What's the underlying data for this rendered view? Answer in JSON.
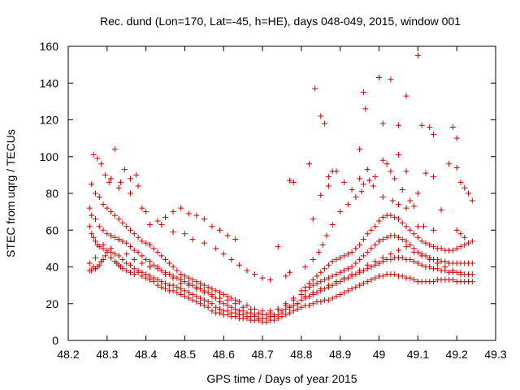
{
  "chart_data": {
    "type": "scatter",
    "title": "Rec. dund (Lon=170, Lat=-45, h=HE), days 048-049, 2015, window 001",
    "xlabel": "GPS time / Days of year 2015",
    "ylabel": "STEC from uqrg / TECUs",
    "xlim": [
      48.2,
      49.3
    ],
    "ylim": [
      0,
      160
    ],
    "xticks": [
      48.2,
      48.3,
      48.4,
      48.5,
      48.6,
      48.7,
      48.8,
      48.9,
      49,
      49.1,
      49.2,
      49.3
    ],
    "xtick_labels": [
      "48.2",
      "48.3",
      "48.4",
      "48.5",
      "48.6",
      "48.7",
      "48.8",
      "48.9",
      "49",
      "49.1",
      "49.2",
      "49.3"
    ],
    "yticks": [
      0,
      20,
      40,
      60,
      80,
      100,
      120,
      140,
      160
    ],
    "ytick_labels": [
      "0",
      "20",
      "40",
      "60",
      "80",
      "100",
      "120",
      "140",
      "160"
    ],
    "grid": false,
    "marker": "plus",
    "marker_color": "#cc0000",
    "series": [
      {
        "x": [
          48.255,
          48.255,
          48.26,
          48.265,
          48.27,
          48.275,
          48.28,
          48.285,
          48.29,
          48.295,
          48.3,
          48.31,
          48.32,
          48.325,
          48.33,
          48.335,
          48.34,
          48.35,
          48.36,
          48.37,
          48.38,
          48.39,
          48.4,
          48.41,
          48.42,
          48.43,
          48.44,
          48.45,
          48.46,
          48.47,
          48.48,
          48.49,
          48.5,
          48.51,
          48.52,
          48.53,
          48.54,
          48.55,
          48.56,
          48.57,
          48.58,
          48.59,
          48.6,
          48.61,
          48.62,
          48.63,
          48.64,
          48.65,
          48.66,
          48.67,
          48.68,
          48.69,
          48.7,
          48.71,
          48.72,
          48.73,
          48.74,
          48.75,
          48.76,
          48.77,
          48.78,
          48.79,
          48.8,
          48.81,
          48.82,
          48.83,
          48.84,
          48.85,
          48.86,
          48.87,
          48.88,
          48.89,
          48.9,
          48.91,
          48.92,
          48.93,
          48.94,
          48.95,
          48.96,
          48.97,
          48.98,
          48.99,
          49.0,
          49.01,
          49.02,
          49.03,
          49.04,
          49.05,
          49.06,
          49.07,
          49.08,
          49.09,
          49.1,
          49.11,
          49.12,
          49.13,
          49.14,
          49.15,
          49.16,
          49.17,
          49.18,
          49.19,
          49.2,
          49.21,
          49.22,
          49.23,
          49.24
        ],
        "y": [
          38,
          42,
          38,
          40,
          39,
          40,
          41,
          43,
          44,
          46,
          48,
          45,
          43,
          42,
          41,
          40,
          39,
          38,
          37,
          36,
          37,
          35,
          34,
          33,
          32,
          30,
          29,
          28,
          27,
          27,
          26,
          25,
          24,
          23,
          22,
          21,
          20,
          19,
          18,
          16,
          15,
          15,
          14,
          14,
          13,
          13,
          12,
          12,
          12,
          11,
          11,
          11,
          10,
          10,
          11,
          11,
          12,
          13,
          14,
          15,
          16,
          17,
          18,
          19,
          19,
          20,
          21,
          21,
          22,
          22,
          23,
          24,
          25,
          26,
          27,
          28,
          29,
          30,
          31,
          32,
          33,
          34,
          35,
          35,
          36,
          36,
          36,
          35,
          35,
          34,
          34,
          33,
          32,
          32,
          32,
          32,
          32,
          33,
          33,
          33,
          33,
          33,
          32,
          32,
          32,
          32,
          32
        ]
      },
      {
        "x": [
          48.255,
          48.26,
          48.265,
          48.27,
          48.275,
          48.28,
          48.29,
          48.3,
          48.31,
          48.32,
          48.33,
          48.34,
          48.35,
          48.36,
          48.37,
          48.38,
          48.39,
          48.4,
          48.41,
          48.42,
          48.43,
          48.44,
          48.45,
          48.46,
          48.47,
          48.48,
          48.49,
          48.5,
          48.51,
          48.52,
          48.53,
          48.54,
          48.55,
          48.56,
          48.57,
          48.58,
          48.59,
          48.6,
          48.61,
          48.62,
          48.63,
          48.64,
          48.65,
          48.66,
          48.67,
          48.68,
          48.69,
          48.7,
          48.71,
          48.72,
          48.73,
          48.74,
          48.75,
          48.76,
          48.77,
          48.78,
          48.79,
          48.8,
          48.81,
          48.82,
          48.83,
          48.84,
          48.85,
          48.86,
          48.87,
          48.88,
          48.89,
          48.9,
          48.91,
          48.92,
          48.93,
          48.94,
          48.95,
          48.96,
          48.97,
          48.98,
          48.99,
          49.0,
          49.01,
          49.02,
          49.03,
          49.04,
          49.05,
          49.06,
          49.07,
          49.08,
          49.09,
          49.1,
          49.11,
          49.12,
          49.13,
          49.14,
          49.15,
          49.16,
          49.17,
          49.18,
          49.19,
          49.2,
          49.21,
          49.22,
          49.23,
          49.24
        ],
        "y": [
          62,
          58,
          56,
          54,
          52,
          51,
          50,
          49,
          48,
          47,
          46,
          44,
          42,
          41,
          39,
          38,
          37,
          36,
          35,
          34,
          33,
          32,
          31,
          30,
          30,
          29,
          28,
          27,
          26,
          25,
          24,
          23,
          22,
          21,
          20,
          18,
          17,
          16,
          16,
          15,
          15,
          14,
          14,
          13,
          13,
          13,
          12,
          12,
          12,
          13,
          13,
          14,
          15,
          17,
          18,
          19,
          20,
          22,
          23,
          24,
          25,
          26,
          27,
          28,
          29,
          30,
          31,
          32,
          33,
          34,
          35,
          36,
          37,
          38,
          39,
          40,
          41,
          42,
          43,
          44,
          44,
          45,
          45,
          45,
          44,
          44,
          43,
          42,
          41,
          40,
          40,
          39,
          39,
          38,
          38,
          37,
          37,
          37,
          36,
          36,
          36,
          36
        ]
      },
      {
        "x": [
          48.255,
          48.26,
          48.27,
          48.28,
          48.29,
          48.3,
          48.31,
          48.32,
          48.33,
          48.34,
          48.35,
          48.36,
          48.37,
          48.38,
          48.39,
          48.4,
          48.41,
          48.42,
          48.43,
          48.44,
          48.45,
          48.46,
          48.47,
          48.48,
          48.49,
          48.5,
          48.51,
          48.52,
          48.53,
          48.54,
          48.55,
          48.56,
          48.57,
          48.58,
          48.59,
          48.6,
          48.61,
          48.62,
          48.63,
          48.64,
          48.65,
          48.66,
          48.67,
          48.68,
          48.7,
          48.72,
          48.74,
          48.76,
          48.78,
          48.8,
          48.81,
          48.82,
          48.83,
          48.84,
          48.85,
          48.86,
          48.87,
          48.88,
          48.89,
          48.9,
          48.91,
          48.92,
          48.93,
          48.94,
          48.95,
          48.96,
          48.97,
          48.98,
          48.99,
          49.0,
          49.01,
          49.02,
          49.03,
          49.04,
          49.05,
          49.06,
          49.07,
          49.08,
          49.09,
          49.1,
          49.11,
          49.12,
          49.13,
          49.14,
          49.15,
          49.16,
          49.17,
          49.18,
          49.19,
          49.2,
          49.21,
          49.22,
          49.23,
          49.24
        ],
        "y": [
          72,
          68,
          66,
          62,
          60,
          58,
          57,
          56,
          55,
          54,
          53,
          51,
          49,
          48,
          46,
          44,
          43,
          41,
          40,
          38,
          37,
          36,
          35,
          34,
          33,
          32,
          31,
          30,
          29,
          28,
          27,
          26,
          24,
          23,
          21,
          20,
          19,
          18,
          17,
          16,
          16,
          15,
          15,
          14,
          14,
          15,
          17,
          19,
          22,
          25,
          27,
          29,
          30,
          31,
          32,
          33,
          34,
          35,
          36,
          37,
          38,
          39,
          40,
          42,
          44,
          46,
          48,
          50,
          52,
          54,
          55,
          56,
          57,
          57,
          56,
          55,
          54,
          52,
          50,
          48,
          47,
          46,
          45,
          44,
          44,
          43,
          43,
          42,
          42,
          42,
          42,
          42,
          42,
          42
        ]
      },
      {
        "x": [
          48.26,
          48.27,
          48.28,
          48.29,
          48.3,
          48.31,
          48.32,
          48.33,
          48.34,
          48.35,
          48.36,
          48.37,
          48.38,
          48.39,
          48.4,
          48.41,
          48.42,
          48.43,
          48.44,
          48.45,
          48.46,
          48.47,
          48.48,
          48.49,
          48.5,
          48.51,
          48.52,
          48.53,
          48.54,
          48.55,
          48.56,
          48.57,
          48.58,
          48.59,
          48.6,
          48.61,
          48.62,
          48.63,
          48.64,
          48.66,
          48.68,
          48.7,
          48.72,
          48.74,
          48.76,
          48.78,
          48.8,
          48.81,
          48.82,
          48.83,
          48.84,
          48.85,
          48.86,
          48.87,
          48.88,
          48.89,
          48.9,
          48.91,
          48.92,
          48.93,
          48.94,
          48.95,
          48.96,
          48.97,
          48.98,
          48.99,
          49.0,
          49.01,
          49.02,
          49.03,
          49.04,
          49.05,
          49.06,
          49.07,
          49.08,
          49.09,
          49.1,
          49.11,
          49.12,
          49.13,
          49.14,
          49.15,
          49.16,
          49.17,
          49.18,
          49.19,
          49.2,
          49.21,
          49.22,
          49.23,
          49.24
        ],
        "y": [
          85,
          80,
          78,
          74,
          72,
          70,
          68,
          66,
          64,
          62,
          60,
          58,
          56,
          54,
          53,
          52,
          50,
          48,
          46,
          44,
          42,
          40,
          38,
          36,
          35,
          34,
          33,
          32,
          31,
          30,
          29,
          28,
          27,
          26,
          25,
          24,
          23,
          22,
          21,
          19,
          17,
          16,
          16,
          17,
          20,
          23,
          27,
          29,
          31,
          33,
          35,
          37,
          39,
          41,
          43,
          44,
          45,
          46,
          47,
          48,
          50,
          52,
          55,
          58,
          60,
          62,
          65,
          67,
          68,
          68,
          67,
          66,
          64,
          62,
          60,
          58,
          56,
          54,
          53,
          52,
          51,
          50,
          50,
          49,
          49,
          49,
          50,
          51,
          52,
          53,
          54
        ]
      },
      {
        "x": [
          48.265,
          48.275,
          48.285,
          48.295,
          48.305,
          48.32,
          48.335,
          48.345,
          48.36,
          48.375,
          48.39,
          48.41,
          48.43,
          48.45,
          48.47,
          48.49,
          48.51,
          48.53,
          48.55,
          48.57,
          48.59,
          48.61,
          48.63,
          48.83,
          48.85,
          48.87,
          48.89,
          48.91,
          48.93,
          48.95,
          48.97,
          48.99,
          49.01,
          49.02,
          49.03,
          49.04,
          49.05,
          49.06,
          49.07,
          49.08,
          49.09,
          49.1,
          49.12,
          49.14,
          49.16,
          49.18,
          49.2,
          49.21,
          49.22,
          49.23,
          49.24
        ],
        "y": [
          101,
          99,
          96,
          90,
          86,
          104,
          86,
          93,
          88,
          90,
          72,
          63,
          65,
          67,
          70,
          72,
          69,
          68,
          66,
          62,
          60,
          57,
          55,
          66,
          79,
          84,
          92,
          86,
          82,
          88,
          93,
          89,
          98,
          96,
          92,
          88,
          101,
          82,
          92,
          76,
          73,
          80,
          91,
          89,
          71,
          96,
          94,
          86,
          83,
          80,
          76
        ]
      },
      {
        "x": [
          48.31,
          48.33,
          48.36,
          48.38,
          48.4,
          48.44,
          48.47,
          48.5,
          48.52,
          48.55,
          48.58,
          48.6,
          48.62,
          48.64,
          48.66,
          48.68,
          48.7,
          48.72,
          48.76,
          48.77,
          48.81,
          48.83,
          48.845,
          48.855,
          48.865,
          48.88,
          48.9,
          48.92,
          48.94,
          48.955,
          48.96,
          48.975,
          48.985,
          49.01,
          49.035,
          49.05,
          49.07,
          49.1,
          49.115,
          49.14,
          49.2,
          49.21,
          49.22
        ],
        "y": [
          88,
          83,
          80,
          84,
          70,
          63,
          59,
          58,
          55,
          53,
          50,
          47,
          44,
          41,
          38,
          36,
          34,
          33,
          35,
          37,
          40,
          44,
          48,
          52,
          57,
          63,
          70,
          74,
          78,
          81,
          85,
          87,
          84,
          78,
          76,
          74,
          72,
          62,
          62,
          60,
          60,
          58,
          56
        ]
      },
      {
        "x": [
          48.74,
          48.77,
          48.78,
          48.82,
          48.835,
          48.85,
          48.86,
          48.87,
          48.88,
          48.95,
          48.96,
          48.965,
          49.0,
          49.01,
          49.03,
          49.05,
          49.07,
          49.1,
          49.11,
          49.13,
          49.14,
          49.19,
          49.2
        ],
        "y": [
          51,
          87,
          86,
          96,
          137,
          122,
          118,
          89,
          92,
          104,
          135,
          126,
          143,
          118,
          142,
          117,
          133,
          155,
          117,
          116,
          112,
          116,
          110
        ]
      },
      {
        "x": [
          48.27,
          48.29,
          48.31,
          48.33,
          48.35,
          48.37,
          48.39,
          48.41,
          48.43,
          48.45,
          48.47,
          48.49,
          48.51,
          48.53,
          48.55,
          48.57,
          48.59,
          48.61,
          48.63,
          48.65,
          48.67,
          48.69,
          48.71,
          48.73,
          48.75,
          48.77,
          48.79,
          48.81,
          48.83,
          48.85,
          48.87,
          48.89,
          48.91,
          48.93,
          48.95,
          48.97,
          48.99,
          49.01,
          49.03,
          49.05,
          49.07,
          49.09,
          49.11,
          49.13,
          49.15,
          49.17,
          49.19,
          49.21,
          49.23
        ],
        "y": [
          45,
          52,
          50,
          55,
          47,
          44,
          42,
          40,
          39,
          36,
          34,
          31,
          30,
          28,
          26,
          25,
          23,
          22,
          20,
          18,
          17,
          15,
          14,
          14,
          16,
          18,
          20,
          24,
          26,
          28,
          30,
          32,
          34,
          36,
          38,
          41,
          43,
          45,
          47,
          49,
          51,
          48,
          46,
          44,
          42,
          40,
          38,
          37,
          36
        ]
      }
    ]
  }
}
